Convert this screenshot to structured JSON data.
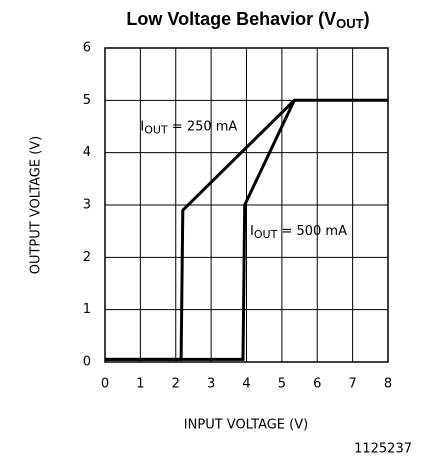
{
  "chart_data": {
    "type": "line",
    "title": [
      "Low Voltage Behavior (V",
      "OUT",
      ")"
    ],
    "xlabel": "INPUT VOLTAGE (V)",
    "ylabel": "OUTPUT VOLTAGE (V)",
    "footnote": "1125237",
    "xlim": [
      0,
      8
    ],
    "ylim": [
      0,
      6
    ],
    "xticks": [
      0,
      1,
      2,
      3,
      4,
      5,
      6,
      7,
      8
    ],
    "yticks": [
      0,
      1,
      2,
      3,
      4,
      5,
      6
    ],
    "grid": true,
    "series": [
      {
        "name": [
          "I",
          "OUT",
          " = 250 mA"
        ],
        "color": "#000000",
        "x": [
          0,
          2.15,
          2.2,
          5.35,
          8
        ],
        "values": [
          0.05,
          0.05,
          2.9,
          5,
          5
        ]
      },
      {
        "name": [
          "I",
          "OUT",
          " = 500 mA"
        ],
        "color": "#000000",
        "x": [
          0,
          3.9,
          3.95,
          5.35
        ],
        "values": [
          0.05,
          0.05,
          3,
          5
        ]
      }
    ]
  }
}
